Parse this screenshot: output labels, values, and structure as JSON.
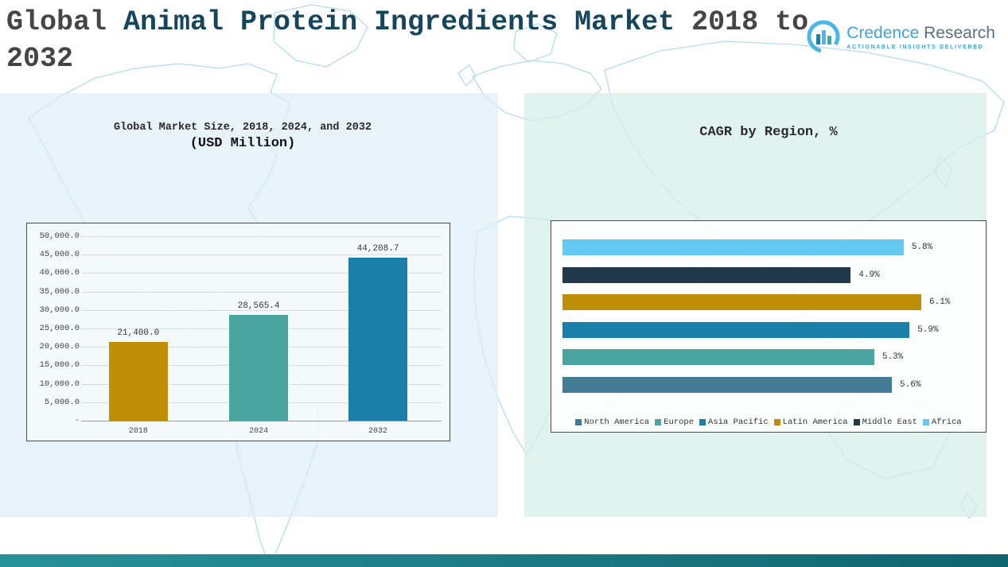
{
  "header": {
    "title_prefix": "Global ",
    "title_accent": "Animal Protein Ingredients Market",
    "title_suffix": " 2018 to 2032",
    "logo": {
      "brand_primary": "Credence",
      "brand_secondary": " Research",
      "tagline": "ACTIONABLE INSIGHTS DELIVERED"
    }
  },
  "chart_data": [
    {
      "id": "market_size",
      "type": "bar",
      "orientation": "vertical",
      "title": "Global Market Size, 2018, 2024, and 2032",
      "subtitle": "(USD Million)",
      "categories": [
        "2018",
        "2024",
        "2032"
      ],
      "values": [
        21400.0,
        28565.4,
        44208.7
      ],
      "value_labels": [
        "21,400.0",
        "28,565.4",
        "44,208.7"
      ],
      "bar_colors": [
        "#BE8E09",
        "#4AA5A0",
        "#1C7FAA"
      ],
      "ylim": [
        0,
        50000
      ],
      "ytick_labels": [
        "50,000.0",
        "45,000.0",
        "40,000.0",
        "35,000.0",
        "30,000.0",
        "25,000.0",
        "20,000.0",
        "15,000.0",
        "10,000.0",
        "5,000.0",
        "-"
      ],
      "grid": true,
      "legend_position": "none"
    },
    {
      "id": "cagr_by_region",
      "type": "bar",
      "orientation": "horizontal",
      "title": "CAGR by Region, %",
      "categories": [
        "Africa",
        "Middle East",
        "Latin America",
        "Asia Pacific",
        "Europe",
        "North America"
      ],
      "values": [
        5.8,
        4.9,
        6.1,
        5.9,
        5.3,
        5.6
      ],
      "value_labels": [
        "5.8%",
        "4.9%",
        "6.1%",
        "5.9%",
        "5.3%",
        "5.6%"
      ],
      "bar_colors": [
        "#63C9F0",
        "#21394A",
        "#BE8E09",
        "#1C7FAA",
        "#4AA5A0",
        "#447C96"
      ],
      "xlim": [
        0,
        7.4
      ],
      "grid": false,
      "legend_position": "bottom",
      "legend": [
        {
          "label": "North America",
          "color": "#447C96"
        },
        {
          "label": "Europe",
          "color": "#4AA5A0"
        },
        {
          "label": "Asia Pacific",
          "color": "#1C7FAA"
        },
        {
          "label": "Latin America",
          "color": "#BE8E09"
        },
        {
          "label": "Middle East",
          "color": "#21394A"
        },
        {
          "label": "Africa",
          "color": "#63C9F0"
        }
      ]
    }
  ],
  "colors": {
    "accent_title": "#17465C",
    "panel_left_bg": "#E3EFF8",
    "panel_right_bg": "#DCF0EA",
    "bottom_bar": "#17707A",
    "map_outline": "#B5DCEE"
  }
}
